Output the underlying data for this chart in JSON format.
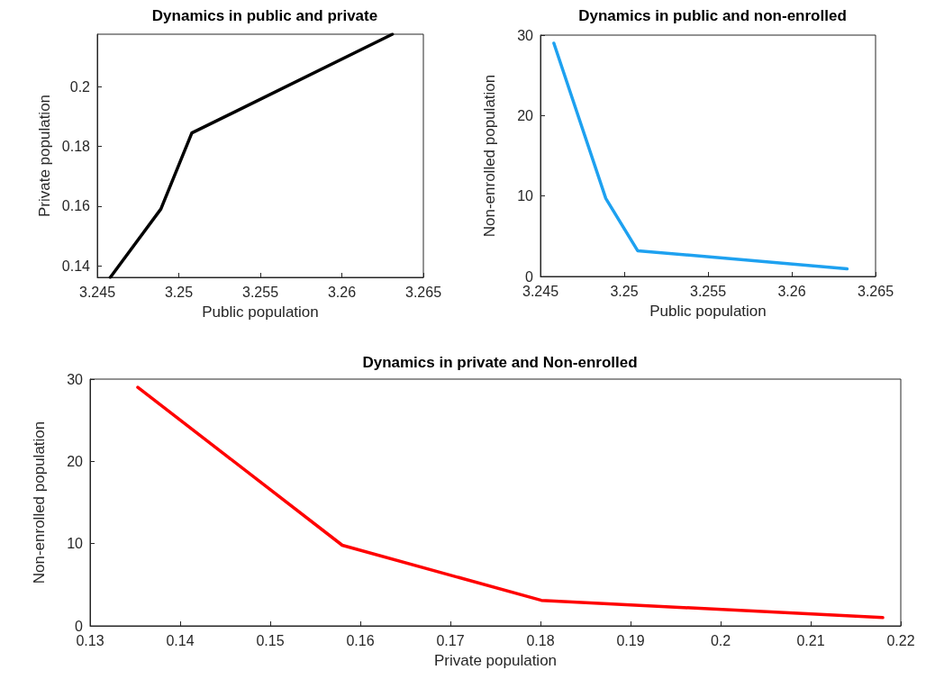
{
  "chart_data": [
    {
      "type": "line",
      "title": "Dynamics in public and private",
      "xlabel": "Public population",
      "ylabel": "Private population",
      "color": "#000000",
      "x": [
        3.2458,
        3.2489,
        3.2508,
        3.2631
      ],
      "values": [
        0.1361,
        0.159,
        0.1845,
        0.2176
      ],
      "xlim": [
        3.245,
        3.265
      ],
      "xticks": [
        3.245,
        3.25,
        3.255,
        3.26,
        3.265
      ],
      "ylim": [
        0.1361,
        0.2176
      ],
      "yticks": [
        0.14,
        0.16,
        0.18,
        0.2
      ],
      "grid": false
    },
    {
      "type": "line",
      "title": "Dynamics in public and non-enrolled",
      "xlabel": "Public population",
      "ylabel": "Non-enrolled population",
      "color": "#1ea1f0",
      "x": [
        3.2458,
        3.2489,
        3.2508,
        3.2633
      ],
      "values": [
        29,
        9.7,
        3.2,
        0.94
      ],
      "xlim": [
        3.245,
        3.265
      ],
      "xticks": [
        3.245,
        3.25,
        3.255,
        3.26,
        3.265
      ],
      "ylim": [
        0,
        30
      ],
      "yticks": [
        0,
        10,
        20,
        30
      ],
      "grid": false
    },
    {
      "type": "line",
      "title": "Dynamics in private and Non-enrolled",
      "xlabel": "Private population",
      "ylabel": "Non-enrolled population",
      "color": "#ff0000",
      "x": [
        0.1353,
        0.158,
        0.1801,
        0.218
      ],
      "values": [
        29,
        9.8,
        3.1,
        1.0
      ],
      "xlim": [
        0.13,
        0.22
      ],
      "xticks": [
        0.13,
        0.14,
        0.15,
        0.16,
        0.17,
        0.18,
        0.19,
        0.2,
        0.21,
        0.22
      ],
      "ylim": [
        0,
        30
      ],
      "yticks": [
        0,
        10,
        20,
        30
      ],
      "grid": false
    }
  ]
}
